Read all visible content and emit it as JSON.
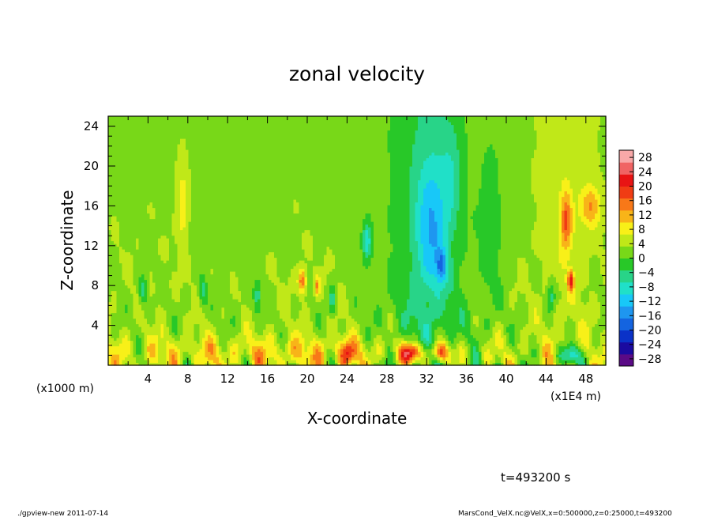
{
  "chart_data": {
    "type": "heatmap",
    "title": "zonal velocity",
    "xlabel": "X-coordinate",
    "ylabel": "Z-coordinate",
    "x_unit_label": "(x1000 m)",
    "x_scale_label": "(x1E4 m)",
    "x_ticks": [
      "4",
      "8",
      "12",
      "16",
      "20",
      "24",
      "28",
      "32",
      "36",
      "40",
      "44",
      "48"
    ],
    "y_ticks": [
      "4",
      "8",
      "12",
      "16",
      "20",
      "24"
    ],
    "xlim": [
      0,
      50
    ],
    "ylim": [
      0,
      25
    ],
    "colorbar_ticks": [
      "28",
      "24",
      "20",
      "16",
      "12",
      "8",
      "4",
      "0",
      "−4",
      "−8",
      "−12",
      "−16",
      "−20",
      "−24",
      "−28"
    ],
    "colorbar_range": [
      -30,
      30
    ],
    "colorbar_colors": [
      "#5a0a86",
      "#1a0aa0",
      "#0a32c8",
      "#1464e0",
      "#1e96f0",
      "#18c8f8",
      "#20e0c8",
      "#28d488",
      "#28c828",
      "#78d818",
      "#c0e818",
      "#f8f018",
      "#f8b418",
      "#f87818",
      "#f03c14",
      "#e81414",
      "#f06464",
      "#f8a8a8"
    ],
    "features": [
      {
        "x": 18,
        "z": 1.2,
        "sx": 20,
        "sz": 1.8,
        "v": 6
      },
      {
        "x": 30.5,
        "z": 1.2,
        "sx": 1.1,
        "sz": 1.0,
        "v": 20
      },
      {
        "x": 33.5,
        "z": 1.3,
        "sx": 0.9,
        "sz": 1.0,
        "v": 14
      },
      {
        "x": 24,
        "z": 1.2,
        "sx": 0.8,
        "sz": 1.2,
        "v": 10
      },
      {
        "x": 46.5,
        "z": 1.0,
        "sx": 1.0,
        "sz": 1.0,
        "v": -14
      },
      {
        "x": 26,
        "z": 12.5,
        "sx": 0.5,
        "sz": 2.0,
        "v": -12
      },
      {
        "x": 32.5,
        "z": 14,
        "sx": 1.6,
        "sz": 7,
        "v": -11
      },
      {
        "x": 33.5,
        "z": 10,
        "sx": 0.5,
        "sz": 1.5,
        "v": -12
      },
      {
        "x": 38.5,
        "z": 14,
        "sx": 1.2,
        "sz": 9,
        "v": -5
      },
      {
        "x": 34.5,
        "z": 19,
        "sx": 1.0,
        "sz": 5,
        "v": -5
      },
      {
        "x": 46,
        "z": 14.5,
        "sx": 0.6,
        "sz": 3,
        "v": 13
      },
      {
        "x": 46.5,
        "z": 8.5,
        "sx": 0.3,
        "sz": 1.0,
        "v": 16
      },
      {
        "x": 48.5,
        "z": 16,
        "sx": 1.0,
        "sz": 2.0,
        "v": 10
      },
      {
        "x": 7.5,
        "z": 16,
        "sx": 0.5,
        "sz": 4,
        "v": 6
      },
      {
        "x": 19.5,
        "z": 8.5,
        "sx": 0.4,
        "sz": 1.2,
        "v": 14
      },
      {
        "x": 21,
        "z": 8,
        "sx": 0.3,
        "sz": 1.0,
        "v": 10
      },
      {
        "x": 3.5,
        "z": 7.5,
        "sx": 0.4,
        "sz": 1.5,
        "v": -9
      },
      {
        "x": 9.5,
        "z": 7.5,
        "sx": 0.4,
        "sz": 1.5,
        "v": -8
      },
      {
        "x": 15,
        "z": 7,
        "sx": 0.4,
        "sz": 1.5,
        "v": -8
      },
      {
        "x": 22.5,
        "z": 6.5,
        "sx": 0.4,
        "sz": 1.5,
        "v": -8
      },
      {
        "x": 44.5,
        "z": 7,
        "sx": 0.4,
        "sz": 1.5,
        "v": -8
      }
    ]
  },
  "annotations": {
    "time_label": "t=493200 s",
    "footer_left": "./gpview-new  2011-07-14",
    "footer_right": "MarsCond_VelX.nc@VelX,x=0:500000,z=0:25000,t=493200"
  }
}
